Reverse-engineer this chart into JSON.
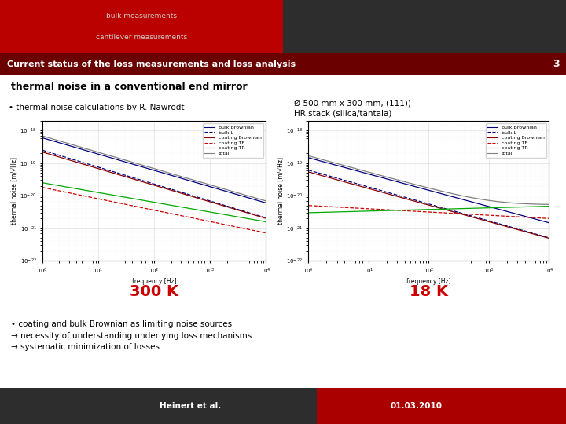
{
  "top_bar_left_color": "#bb0000",
  "top_bar_right_color": "#2d2d2d",
  "header_split": 0.5,
  "bulk_text": "bulk measurements",
  "cantilever_text": "cantilever measurements",
  "status_bar_color": "#6a0000",
  "status_text": "Current status of the loss measurements and loss analysis",
  "status_number": "3",
  "slide_title": "thermal noise in a conventional end mirror",
  "bullet1": "• thermal noise calculations by R. Nawrodt",
  "mirror_spec_line1": "Ø 500 mm x 300 mm, (111))",
  "mirror_spec_line2": "HR stack (silica/tantala)",
  "temp_left": "300 K",
  "temp_right": "18 K",
  "bullet_bottom1": "• coating and bulk Brownian as limiting noise sources",
  "arrow1": "→ necessity of understanding underlying loss mechanisms",
  "arrow2": "→ systematic minimization of losses",
  "footer_left_color": "#2d2d2d",
  "footer_right_color": "#aa0000",
  "footer_author": "Heinert et al.",
  "footer_date": "01.03.2010",
  "footer_split": 0.56,
  "bg_color": "#ffffff",
  "legend_entries": [
    "bulk Brownian",
    "bulk L",
    "coating Brownian",
    "coating TE",
    "coating TR",
    "total"
  ],
  "line_colors": [
    "#000080",
    "#000080",
    "#8b0000",
    "#cc0000",
    "#00aa00",
    "#808080"
  ],
  "line_styles": [
    "-",
    "--",
    "-",
    "--",
    "-",
    "-"
  ],
  "yaxis_label": "thermal noise [m/√Hz]",
  "xaxis_label": "frequency [Hz]"
}
